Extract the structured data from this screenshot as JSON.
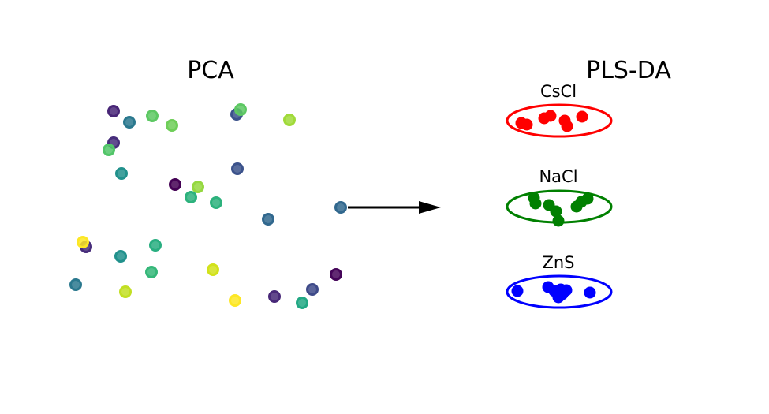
{
  "pca": {
    "title": "PCA",
    "points": [
      {
        "color": "#482677"
      },
      {
        "color": "#2A788E"
      },
      {
        "color": "#5DC863"
      },
      {
        "color": "#6ECE58"
      },
      {
        "color": "#3B528B"
      },
      {
        "color": "#5DC863"
      },
      {
        "color": "#A0DA39"
      },
      {
        "color": "#472D7B"
      },
      {
        "color": "#52C569"
      },
      {
        "color": "#21918C"
      },
      {
        "color": "#3B528B"
      },
      {
        "color": "#440154"
      },
      {
        "color": "#95D840"
      },
      {
        "color": "#2DB27D"
      },
      {
        "color": "#2DB27D"
      },
      {
        "color": "#31688E"
      },
      {
        "color": "#31688E"
      },
      {
        "color": "#472D7B"
      },
      {
        "color": "#FDE725"
      },
      {
        "color": "#21918C"
      },
      {
        "color": "#28AE80"
      },
      {
        "color": "#2A788E"
      },
      {
        "color": "#35B779"
      },
      {
        "color": "#D2E21B"
      },
      {
        "color": "#C2DF23"
      },
      {
        "color": "#450559"
      },
      {
        "color": "#3E4A89"
      },
      {
        "color": "#FDE725"
      },
      {
        "color": "#482878"
      },
      {
        "color": "#22A884"
      }
    ]
  },
  "plsda": {
    "title": "PLS-DA",
    "groups": [
      {
        "name": "CsCl",
        "color": "#FF0000",
        "count": 7
      },
      {
        "name": "NaCl",
        "color": "#008000",
        "count": 8
      },
      {
        "name": "ZnS",
        "color": "#0000FF",
        "count": 8
      }
    ]
  },
  "arrow": {
    "color": "#000000"
  }
}
